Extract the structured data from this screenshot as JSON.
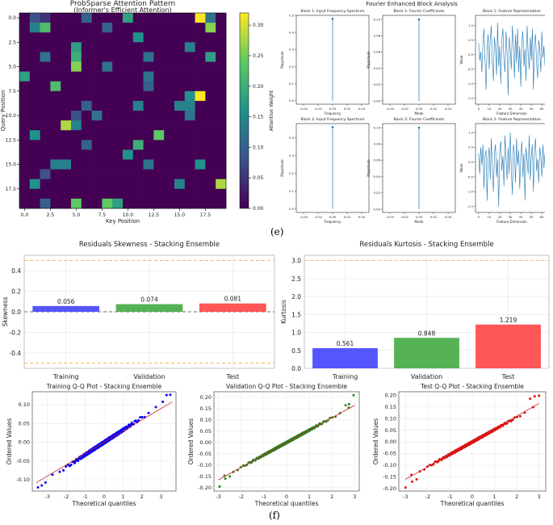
{
  "panel_labels": {
    "e": "(e)",
    "f": "(f)"
  },
  "chart_data": [
    {
      "type": "heatmap",
      "title": "ProbSparse Attention Pattern",
      "subtitle": "(Informer's Efficient Attention)",
      "xlabel": "Key Position",
      "ylabel": "Query Position",
      "colorbar_label": "Attention Weight",
      "colormap": "viridis",
      "vmin": 0,
      "vmax": 0.32,
      "x_ticks": [
        "0.0",
        "2.5",
        "5.0",
        "7.5",
        "10.0",
        "12.5",
        "15.0",
        "17.5"
      ],
      "y_ticks": [
        "0.0",
        "2.5",
        "5.0",
        "7.5",
        "10.0",
        "12.5",
        "15.0",
        "17.5"
      ],
      "colorbar_ticks": [
        "0.00",
        "0.05",
        "0.10",
        "0.15",
        "0.20",
        "0.25",
        "0.30"
      ],
      "values": [
        [
          0.0,
          0.08,
          0.05,
          0.0,
          0.0,
          0.0,
          0.1,
          0.0,
          0.0,
          0.0,
          0.18,
          0.0,
          0.0,
          0.0,
          0.0,
          0.0,
          0.0,
          0.32,
          0.12,
          0.0
        ],
        [
          0.0,
          0.14,
          0.22,
          0.0,
          0.0,
          0.0,
          0.0,
          0.0,
          0.1,
          0.0,
          0.0,
          0.0,
          0.0,
          0.0,
          0.0,
          0.0,
          0.0,
          0.0,
          0.26,
          0.0
        ],
        [
          0.0,
          0.0,
          0.0,
          0.0,
          0.0,
          0.0,
          0.0,
          0.0,
          0.0,
          0.0,
          0.0,
          0.16,
          0.0,
          0.0,
          0.0,
          0.0,
          0.0,
          0.0,
          0.0,
          0.0
        ],
        [
          0.0,
          0.0,
          0.0,
          0.0,
          0.0,
          0.18,
          0.0,
          0.0,
          0.0,
          0.0,
          0.0,
          0.0,
          0.0,
          0.0,
          0.0,
          0.0,
          0.14,
          0.0,
          0.0,
          0.0
        ],
        [
          0.0,
          0.0,
          0.12,
          0.0,
          0.0,
          0.2,
          0.0,
          0.0,
          0.0,
          0.0,
          0.0,
          0.0,
          0.12,
          0.0,
          0.0,
          0.0,
          0.0,
          0.0,
          0.18,
          0.0
        ],
        [
          0.0,
          0.0,
          0.0,
          0.0,
          0.0,
          0.26,
          0.0,
          0.0,
          0.12,
          0.0,
          0.0,
          0.0,
          0.0,
          0.0,
          0.0,
          0.0,
          0.0,
          0.0,
          0.0,
          0.0
        ],
        [
          0.18,
          0.0,
          0.0,
          0.0,
          0.0,
          0.0,
          0.0,
          0.0,
          0.0,
          0.0,
          0.0,
          0.0,
          0.12,
          0.0,
          0.0,
          0.0,
          0.0,
          0.0,
          0.0,
          0.0
        ],
        [
          0.0,
          0.0,
          0.0,
          0.22,
          0.0,
          0.0,
          0.0,
          0.0,
          0.0,
          0.0,
          0.0,
          0.0,
          0.1,
          0.0,
          0.0,
          0.0,
          0.0,
          0.0,
          0.0,
          0.0
        ],
        [
          0.0,
          0.0,
          0.0,
          0.0,
          0.0,
          0.0,
          0.0,
          0.0,
          0.0,
          0.0,
          0.0,
          0.0,
          0.0,
          0.0,
          0.0,
          0.0,
          0.16,
          0.32,
          0.0,
          0.0
        ],
        [
          0.0,
          0.0,
          0.0,
          0.0,
          0.0,
          0.0,
          0.1,
          0.0,
          0.0,
          0.0,
          0.0,
          0.14,
          0.0,
          0.0,
          0.0,
          0.14,
          0.14,
          0.0,
          0.0,
          0.0
        ],
        [
          0.0,
          0.0,
          0.0,
          0.0,
          0.0,
          0.08,
          0.0,
          0.12,
          0.0,
          0.0,
          0.0,
          0.0,
          0.0,
          0.0,
          0.0,
          0.0,
          0.12,
          0.0,
          0.0,
          0.0
        ],
        [
          0.0,
          0.0,
          0.0,
          0.0,
          0.28,
          0.14,
          0.0,
          0.0,
          0.0,
          0.0,
          0.0,
          0.0,
          0.0,
          0.0,
          0.0,
          0.0,
          0.0,
          0.0,
          0.0,
          0.0
        ],
        [
          0.0,
          0.16,
          0.0,
          0.0,
          0.0,
          0.0,
          0.0,
          0.0,
          0.0,
          0.0,
          0.0,
          0.0,
          0.0,
          0.24,
          0.0,
          0.0,
          0.0,
          0.0,
          0.0,
          0.0
        ],
        [
          0.0,
          0.0,
          0.0,
          0.0,
          0.0,
          0.0,
          0.1,
          0.0,
          0.0,
          0.0,
          0.0,
          0.2,
          0.0,
          0.0,
          0.0,
          0.0,
          0.0,
          0.0,
          0.0,
          0.0
        ],
        [
          0.0,
          0.0,
          0.0,
          0.0,
          0.0,
          0.0,
          0.0,
          0.0,
          0.0,
          0.0,
          0.16,
          0.0,
          0.0,
          0.0,
          0.0,
          0.0,
          0.0,
          0.0,
          0.0,
          0.0
        ],
        [
          0.0,
          0.0,
          0.0,
          0.14,
          0.14,
          0.0,
          0.0,
          0.0,
          0.0,
          0.0,
          0.0,
          0.0,
          0.12,
          0.0,
          0.0,
          0.0,
          0.0,
          0.16,
          0.0,
          0.0
        ],
        [
          0.0,
          0.0,
          0.08,
          0.0,
          0.0,
          0.0,
          0.0,
          0.0,
          0.0,
          0.0,
          0.0,
          0.0,
          0.0,
          0.0,
          0.0,
          0.0,
          0.0,
          0.0,
          0.0,
          0.0
        ],
        [
          0.0,
          0.16,
          0.0,
          0.0,
          0.0,
          0.0,
          0.0,
          0.0,
          0.0,
          0.0,
          0.0,
          0.0,
          0.0,
          0.0,
          0.0,
          0.14,
          0.0,
          0.0,
          0.0,
          0.28
        ],
        [
          0.0,
          0.0,
          0.0,
          0.0,
          0.0,
          0.0,
          0.0,
          0.0,
          0.0,
          0.0,
          0.0,
          0.0,
          0.0,
          0.0,
          0.0,
          0.0,
          0.0,
          0.0,
          0.0,
          0.0
        ],
        [
          0.0,
          0.0,
          0.1,
          0.0,
          0.0,
          0.24,
          0.0,
          0.0,
          0.24,
          0.18,
          0.0,
          0.0,
          0.0,
          0.0,
          0.0,
          0.0,
          0.0,
          0.0,
          0.0,
          0.0
        ]
      ]
    },
    {
      "type": "line",
      "group_title": "Fourier Enhanced Block Analysis",
      "line_color": "#1f77b4",
      "panels": [
        {
          "kind": "spectrum",
          "title": "Block 1: Input Frequency Spectrum",
          "xlabel": "Frequency",
          "ylabel": "Magnitude",
          "x_ticks": [
            "-0.04",
            "-0.02",
            "0.00",
            "0.02",
            "0.04"
          ],
          "xlim": [
            -0.05,
            0.05
          ],
          "y_ticks": [
            "0.0",
            "0.1",
            "0.2",
            "0.3",
            "0.4",
            "0.5"
          ],
          "ylim": [
            -0.02,
            0.5
          ],
          "stem": {
            "x": 0.0,
            "y": 0.48
          }
        },
        {
          "kind": "spectrum",
          "title": "Block 1: Fourier Coefficients",
          "xlabel": "Mode",
          "ylabel": "Magnitude",
          "x_ticks": [
            "-0.04",
            "-0.02",
            "0.00",
            "0.02",
            "0.04"
          ],
          "xlim": [
            -0.05,
            0.05
          ],
          "y_ticks": [
            "0.00",
            "0.02",
            "0.04",
            "0.06",
            "0.08",
            "0.10"
          ],
          "ylim": [
            -0.004,
            0.105
          ],
          "stem": {
            "x": 0.0,
            "y": 0.1
          }
        },
        {
          "kind": "signal",
          "title": "Block 1: Feature Representation",
          "xlabel": "Feature Dimension",
          "ylabel": "Value",
          "x_ticks": [
            "0",
            "10",
            "20",
            "30",
            "40",
            "50",
            "60"
          ],
          "xlim": [
            -3,
            66
          ],
          "y_ticks": [
            "-1.5",
            "-1.0",
            "-0.5",
            "0.0",
            "0.5",
            "1.0"
          ],
          "ylim": [
            -1.7,
            1.35
          ],
          "values": [
            0.4,
            -0.2,
            0.1,
            -0.6,
            0.3,
            0.9,
            -0.1,
            -1.2,
            0.2,
            0.7,
            -0.5,
            0.5,
            1.0,
            -0.3,
            -0.9,
            0.6,
            0.2,
            -0.7,
            1.1,
            -0.4,
            0.3,
            -1.0,
            0.5,
            0.9,
            -0.2,
            -0.6,
            0.8,
            0.1,
            -1.4,
            0.6,
            0.2,
            -0.5,
            1.0,
            0.4,
            -0.8,
            0.7,
            -0.3,
            0.9,
            -0.6,
            0.3,
            -1.1,
            0.5,
            0.8,
            -0.4,
            0.2,
            -0.9,
            1.0,
            0.1,
            -0.5,
            0.6,
            -0.2,
            0.9,
            -1.2,
            0.4,
            0.7,
            -0.3,
            -0.8,
            0.5,
            0.2,
            -0.6,
            0.8,
            -0.1,
            0.3,
            -0.4
          ]
        },
        {
          "kind": "spectrum",
          "title": "Block 2: Input Frequency Spectrum",
          "xlabel": "Frequency",
          "ylabel": "Magnitude",
          "x_ticks": [
            "-0.04",
            "-0.02",
            "0.00",
            "0.02",
            "0.04"
          ],
          "xlim": [
            -0.05,
            0.05
          ],
          "y_ticks": [
            "0.0",
            "0.1",
            "0.2",
            "0.3",
            "0.4"
          ],
          "ylim": [
            -0.02,
            0.48
          ],
          "stem": {
            "x": 0.0,
            "y": 0.46
          }
        },
        {
          "kind": "spectrum",
          "title": "Block 2: Fourier Coefficients",
          "xlabel": "Mode",
          "ylabel": "Magnitude",
          "x_ticks": [
            "-0.04",
            "-0.02",
            "0.00",
            "0.02",
            "0.04"
          ],
          "xlim": [
            -0.05,
            0.05
          ],
          "y_ticks": [
            "0.00",
            "0.02",
            "0.04",
            "0.06",
            "0.08",
            "0.10"
          ],
          "ylim": [
            -0.004,
            0.105
          ],
          "stem": {
            "x": 0.0,
            "y": 0.1
          }
        },
        {
          "kind": "signal",
          "title": "Block 2: Feature Representation",
          "xlabel": "Feature Dimension",
          "ylabel": "Value",
          "x_ticks": [
            "0",
            "10",
            "20",
            "30",
            "40",
            "50",
            "60"
          ],
          "xlim": [
            -3,
            66
          ],
          "y_ticks": [
            "-1.5",
            "-1.0",
            "-0.5",
            "0.0",
            "0.5",
            "1.0"
          ],
          "ylim": [
            -1.7,
            1.3
          ],
          "values": [
            0.3,
            -0.4,
            0.5,
            -0.1,
            0.6,
            -0.9,
            0.2,
            0.4,
            -1.3,
            0.1,
            0.5,
            -0.6,
            0.8,
            -0.2,
            -1.0,
            0.3,
            0.6,
            -0.5,
            0.1,
            -1.5,
            0.4,
            0.7,
            -0.3,
            0.2,
            -0.8,
            0.9,
            0.1,
            -0.6,
            0.5,
            -0.4,
            1.0,
            -0.2,
            -1.1,
            0.6,
            0.3,
            -0.7,
            0.8,
            -0.1,
            0.4,
            -0.9,
            0.2,
            0.7,
            -0.5,
            0.3,
            -1.3,
            0.5,
            0.1,
            -0.4,
            0.9,
            -0.6,
            0.2,
            0.6,
            -1.0,
            0.4,
            0.8,
            -0.3,
            0.1,
            -0.7,
            0.5,
            0.2,
            -0.5,
            0.6,
            -0.2,
            0.3
          ]
        }
      ]
    },
    {
      "type": "bar",
      "title": "Residuals Skewness - Stacking Ensemble",
      "categories": [
        "Training",
        "Validation",
        "Test"
      ],
      "values": [
        0.056,
        0.074,
        0.081
      ],
      "value_labels": [
        "0.056",
        "0.074",
        "0.081"
      ],
      "colors": [
        "#4444ff",
        "#44aa44",
        "#ff4444"
      ],
      "ylabel": "Skewness",
      "ylim": [
        -0.55,
        0.55
      ],
      "y_ticks": [
        "-0.4",
        "-0.2",
        "0.0",
        "0.2",
        "0.4"
      ],
      "y_tick_values": [
        -0.4,
        -0.2,
        0.0,
        0.2,
        0.4
      ],
      "reference_lines": [
        0.5,
        -0.5
      ],
      "zero_line": 0.0,
      "grid": true
    },
    {
      "type": "bar",
      "title": "Residuals Kurtosis - Stacking Ensemble",
      "categories": [
        "Training",
        "Validation",
        "Test"
      ],
      "values": [
        0.561,
        0.848,
        1.219
      ],
      "value_labels": [
        "0.561",
        "0.848",
        "1.219"
      ],
      "colors": [
        "#4444ff",
        "#44aa44",
        "#ff4444"
      ],
      "ylabel": "Kurtosis",
      "ylim": [
        0,
        3.15
      ],
      "y_ticks": [
        "0.0",
        "0.5",
        "1.0",
        "1.5",
        "2.0",
        "2.5",
        "3.0"
      ],
      "y_tick_values": [
        0,
        0.5,
        1.0,
        1.5,
        2.0,
        2.5,
        3.0
      ],
      "reference_lines": [
        3.0
      ],
      "grid": true
    },
    {
      "type": "scatter",
      "title": "Training Q-Q Plot - Stacking Ensemble",
      "xlabel": "Theoretical quantiles",
      "ylabel": "Ordered Values",
      "point_color": "#0000ff",
      "line_color": "#cc2222",
      "xlim": [
        -3.8,
        3.8
      ],
      "ylim": [
        -0.13,
        0.135
      ],
      "x_ticks": [
        "-3",
        "-2",
        "-1",
        "0",
        "1",
        "2",
        "3"
      ],
      "x_tick_values": [
        -3,
        -2,
        -1,
        0,
        1,
        2,
        3
      ],
      "y_ticks": [
        "-0.10",
        "-0.05",
        "0.00",
        "0.05",
        "0.10"
      ],
      "y_tick_values": [
        -0.1,
        -0.05,
        0,
        0.05,
        0.1
      ],
      "fit_line": {
        "x": [
          -3.6,
          3.6
        ],
        "y": [
          -0.108,
          0.108
        ]
      },
      "qq": {
        "xmin": -3.5,
        "xmax": 3.5,
        "scale": 0.033,
        "low_tail": [
          [
            -3.5,
            -0.12
          ],
          [
            -3.3,
            -0.115
          ],
          [
            -3.1,
            -0.107
          ]
        ],
        "high_tail": [
          [
            3.1,
            0.108
          ],
          [
            3.3,
            0.126
          ],
          [
            3.5,
            0.127
          ]
        ]
      }
    },
    {
      "type": "scatter",
      "title": "Validation Q-Q Plot - Stacking Ensemble",
      "xlabel": "Theoretical quantiles",
      "ylabel": "Ordered Values",
      "point_color": "#228822",
      "line_color": "#cc2222",
      "xlim": [
        -3.2,
        3.2
      ],
      "ylim": [
        -0.215,
        0.225
      ],
      "x_ticks": [
        "-3",
        "-2",
        "-1",
        "0",
        "1",
        "2",
        "3"
      ],
      "x_tick_values": [
        -3,
        -2,
        -1,
        0,
        1,
        2,
        3
      ],
      "y_ticks": [
        "-0.20",
        "-0.15",
        "-0.10",
        "-0.05",
        "0.00",
        "0.05",
        "0.10",
        "0.15",
        "0.20"
      ],
      "y_tick_values": [
        -0.2,
        -0.15,
        -0.1,
        -0.05,
        0,
        0.05,
        0.1,
        0.15,
        0.2
      ],
      "fit_line": {
        "x": [
          -3.0,
          3.0
        ],
        "y": [
          -0.165,
          0.165
        ]
      },
      "qq": {
        "xmin": -2.95,
        "xmax": 2.95,
        "scale": 0.055,
        "low_tail": [
          [
            -2.95,
            -0.195
          ],
          [
            -2.7,
            -0.16
          ],
          [
            -2.5,
            -0.15
          ]
        ],
        "high_tail": [
          [
            2.6,
            0.165
          ],
          [
            2.75,
            0.17
          ],
          [
            2.95,
            0.21
          ]
        ]
      }
    },
    {
      "type": "scatter",
      "title": "Test Q-Q Plot - Stacking Ensemble",
      "xlabel": "Theoretical quantiles",
      "ylabel": "Ordered Values",
      "point_color": "#dd1111",
      "line_color": "#cc2222",
      "xlim": [
        -3.3,
        3.3
      ],
      "ylim": [
        -0.21,
        0.215
      ],
      "x_ticks": [
        "-3",
        "-2",
        "-1",
        "0",
        "1",
        "2",
        "3"
      ],
      "x_tick_values": [
        -3,
        -2,
        -1,
        0,
        1,
        2,
        3
      ],
      "y_ticks": [
        "-0.20",
        "-0.15",
        "-0.10",
        "-0.05",
        "0.00",
        "0.05",
        "0.10",
        "0.15",
        "0.20"
      ],
      "y_tick_values": [
        -0.2,
        -0.15,
        -0.1,
        -0.05,
        0,
        0.05,
        0.1,
        0.15,
        0.2
      ],
      "fit_line": {
        "x": [
          -3.0,
          3.0
        ],
        "y": [
          -0.16,
          0.165
        ]
      },
      "qq": {
        "xmin": -3.0,
        "xmax": 3.0,
        "scale": 0.053,
        "low_tail": [
          [
            -3.0,
            -0.195
          ],
          [
            -2.7,
            -0.17
          ],
          [
            -2.5,
            -0.16
          ]
        ],
        "high_tail": [
          [
            2.6,
            0.185
          ],
          [
            2.8,
            0.195
          ],
          [
            3.0,
            0.198
          ]
        ]
      }
    }
  ]
}
